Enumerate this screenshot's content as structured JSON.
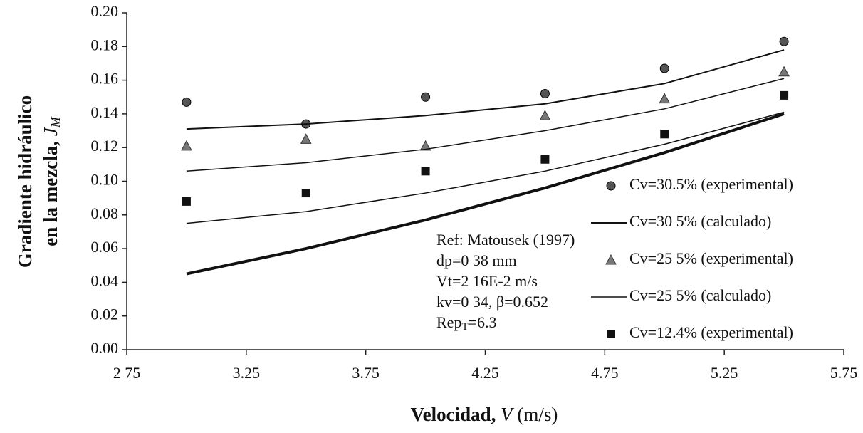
{
  "chart_data": {
    "type": "scatter",
    "ylabel": {
      "line1": "Gradiente hidráulico",
      "line2": "en la mezcla, ",
      "symbol": "J",
      "sub": "M"
    },
    "xlabel": {
      "bold": "Velocidad, ",
      "italic": "V",
      "unit": " (m/s)"
    },
    "x": [
      3.0,
      3.5,
      4.0,
      4.5,
      5.0,
      5.5
    ],
    "xlim": [
      2.75,
      5.75
    ],
    "xticks": [
      {
        "value": 2.75,
        "label": "2 75"
      },
      3.25,
      3.75,
      4.25,
      4.75,
      5.25,
      5.75
    ],
    "ylim": [
      0,
      0.2
    ],
    "yticks": [
      {
        "value": 0,
        "label": "0.00"
      },
      {
        "value": 0.02,
        "label": "0.02"
      },
      {
        "value": 0.04,
        "label": "0.04"
      },
      {
        "value": 0.06,
        "label": "0.06"
      },
      {
        "value": 0.08,
        "label": "0.08"
      },
      {
        "value": 0.1,
        "label": "0.10"
      },
      {
        "value": 0.12,
        "label": "0.12"
      },
      {
        "value": 0.14,
        "label": "0.14"
      },
      {
        "value": 0.16,
        "label": "0.16"
      },
      {
        "value": 0.18,
        "label": "0.18"
      },
      {
        "value": 0.2,
        "label": "0.20"
      }
    ],
    "grid": false,
    "legend": "right",
    "series": [
      {
        "name": "Cv=30.5% (experimental)",
        "marker": "circle",
        "color": "#555555",
        "values": [
          0.147,
          0.134,
          0.15,
          0.152,
          0.167,
          0.183
        ]
      },
      {
        "name": "Cv=30 5% (calculado)",
        "marker": "line",
        "color": "#111111",
        "width": 2,
        "values": [
          0.131,
          0.134,
          0.139,
          0.146,
          0.158,
          0.178
        ]
      },
      {
        "name": "Cv=25 5% (experimental)",
        "marker": "triangle",
        "color": "#777777",
        "values": [
          0.121,
          0.125,
          0.121,
          0.139,
          0.149,
          0.165
        ]
      },
      {
        "name": "Cv=25 5% (calculado)",
        "marker": "line",
        "color": "#111111",
        "width": 1.5,
        "values": [
          0.106,
          0.111,
          0.119,
          0.13,
          0.143,
          0.161
        ]
      },
      {
        "name": "Cv=12.4% (experimental)",
        "marker": "square",
        "color": "#111111",
        "values": [
          0.088,
          0.093,
          0.106,
          0.113,
          0.128,
          0.151
        ]
      },
      {
        "marker": "line",
        "color": "#111111",
        "width": 1.5,
        "values": [
          0.075,
          0.082,
          0.093,
          0.106,
          0.122,
          0.141
        ]
      },
      {
        "marker": "line",
        "color": "#111111",
        "width": 4,
        "values": [
          0.045,
          0.06,
          0.077,
          0.096,
          0.117,
          0.14
        ]
      }
    ],
    "annotation": {
      "lines": [
        "Ref: Matousek (1997)",
        "dp=0 38 mm",
        "Vt=2 16E-2 m/s",
        "kv=0 34, β=0.652"
      ],
      "rep": {
        "base": "Rep",
        "sub": "T",
        "tail": "=6.3"
      }
    }
  }
}
